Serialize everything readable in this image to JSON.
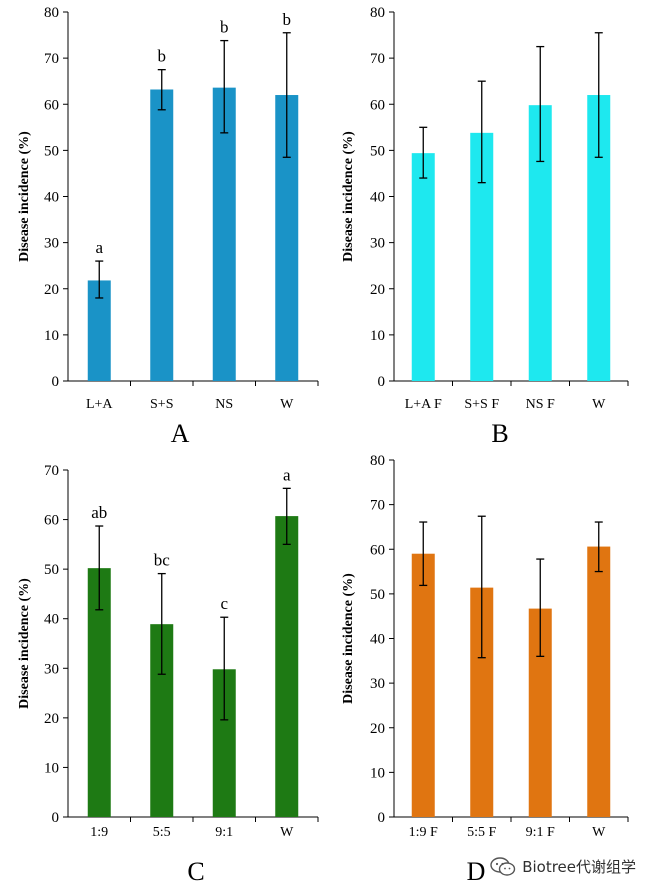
{
  "chart_data": [
    {
      "type": "bar",
      "panel_label": "A",
      "categories": [
        "L+A",
        "S+S",
        "NS",
        "W"
      ],
      "values": [
        21.8,
        63.2,
        63.6,
        62.0
      ],
      "error_low": [
        18.0,
        58.8,
        53.8,
        48.5
      ],
      "error_high": [
        26.0,
        67.5,
        73.8,
        75.5
      ],
      "annotations": [
        "a",
        "b",
        "b",
        "b"
      ],
      "color": "#1a93c7",
      "ylabel": "Disease incidence (%)",
      "ylim": [
        0,
        80
      ],
      "yticks": [
        0,
        10,
        20,
        30,
        40,
        50,
        60,
        70,
        80
      ]
    },
    {
      "type": "bar",
      "panel_label": "B",
      "categories": [
        "L+A F",
        "S+S F",
        "NS F",
        "W"
      ],
      "values": [
        49.4,
        53.8,
        59.8,
        62.0
      ],
      "error_low": [
        44.0,
        43.0,
        47.6,
        48.5
      ],
      "error_high": [
        55.0,
        65.0,
        72.5,
        75.5
      ],
      "annotations": [],
      "color": "#1ee8ef",
      "ylabel": "Disease incidence (%)",
      "ylim": [
        0,
        80
      ],
      "yticks": [
        0,
        10,
        20,
        30,
        40,
        50,
        60,
        70,
        80
      ]
    },
    {
      "type": "bar",
      "panel_label": "C",
      "categories": [
        "1:9",
        "5:5",
        "9:1",
        "W"
      ],
      "values": [
        50.2,
        38.9,
        29.8,
        60.7
      ],
      "error_low": [
        41.8,
        28.8,
        19.6,
        55.0
      ],
      "error_high": [
        58.7,
        49.1,
        40.3,
        66.3
      ],
      "annotations": [
        "ab",
        "bc",
        "c",
        "a"
      ],
      "color": "#1e7a14",
      "ylabel": "Disease incidence (%)",
      "ylim": [
        0,
        70
      ],
      "yticks": [
        0,
        10,
        20,
        30,
        40,
        50,
        60,
        70
      ]
    },
    {
      "type": "bar",
      "panel_label": "D",
      "categories": [
        "1:9 F",
        "5:5 F",
        "9:1 F",
        "W"
      ],
      "values": [
        59.0,
        51.4,
        46.7,
        60.6
      ],
      "error_low": [
        51.9,
        35.7,
        36.0,
        55.0
      ],
      "error_high": [
        66.1,
        67.4,
        57.8,
        66.1
      ],
      "annotations": [],
      "color": "#e07511",
      "ylabel": "Disease incidence (%)",
      "ylim": [
        0,
        80
      ],
      "yticks": [
        0,
        10,
        20,
        30,
        40,
        50,
        60,
        70,
        80
      ]
    }
  ],
  "watermark": {
    "text": "Biotree代谢组学",
    "icon": "wechat-icon"
  }
}
